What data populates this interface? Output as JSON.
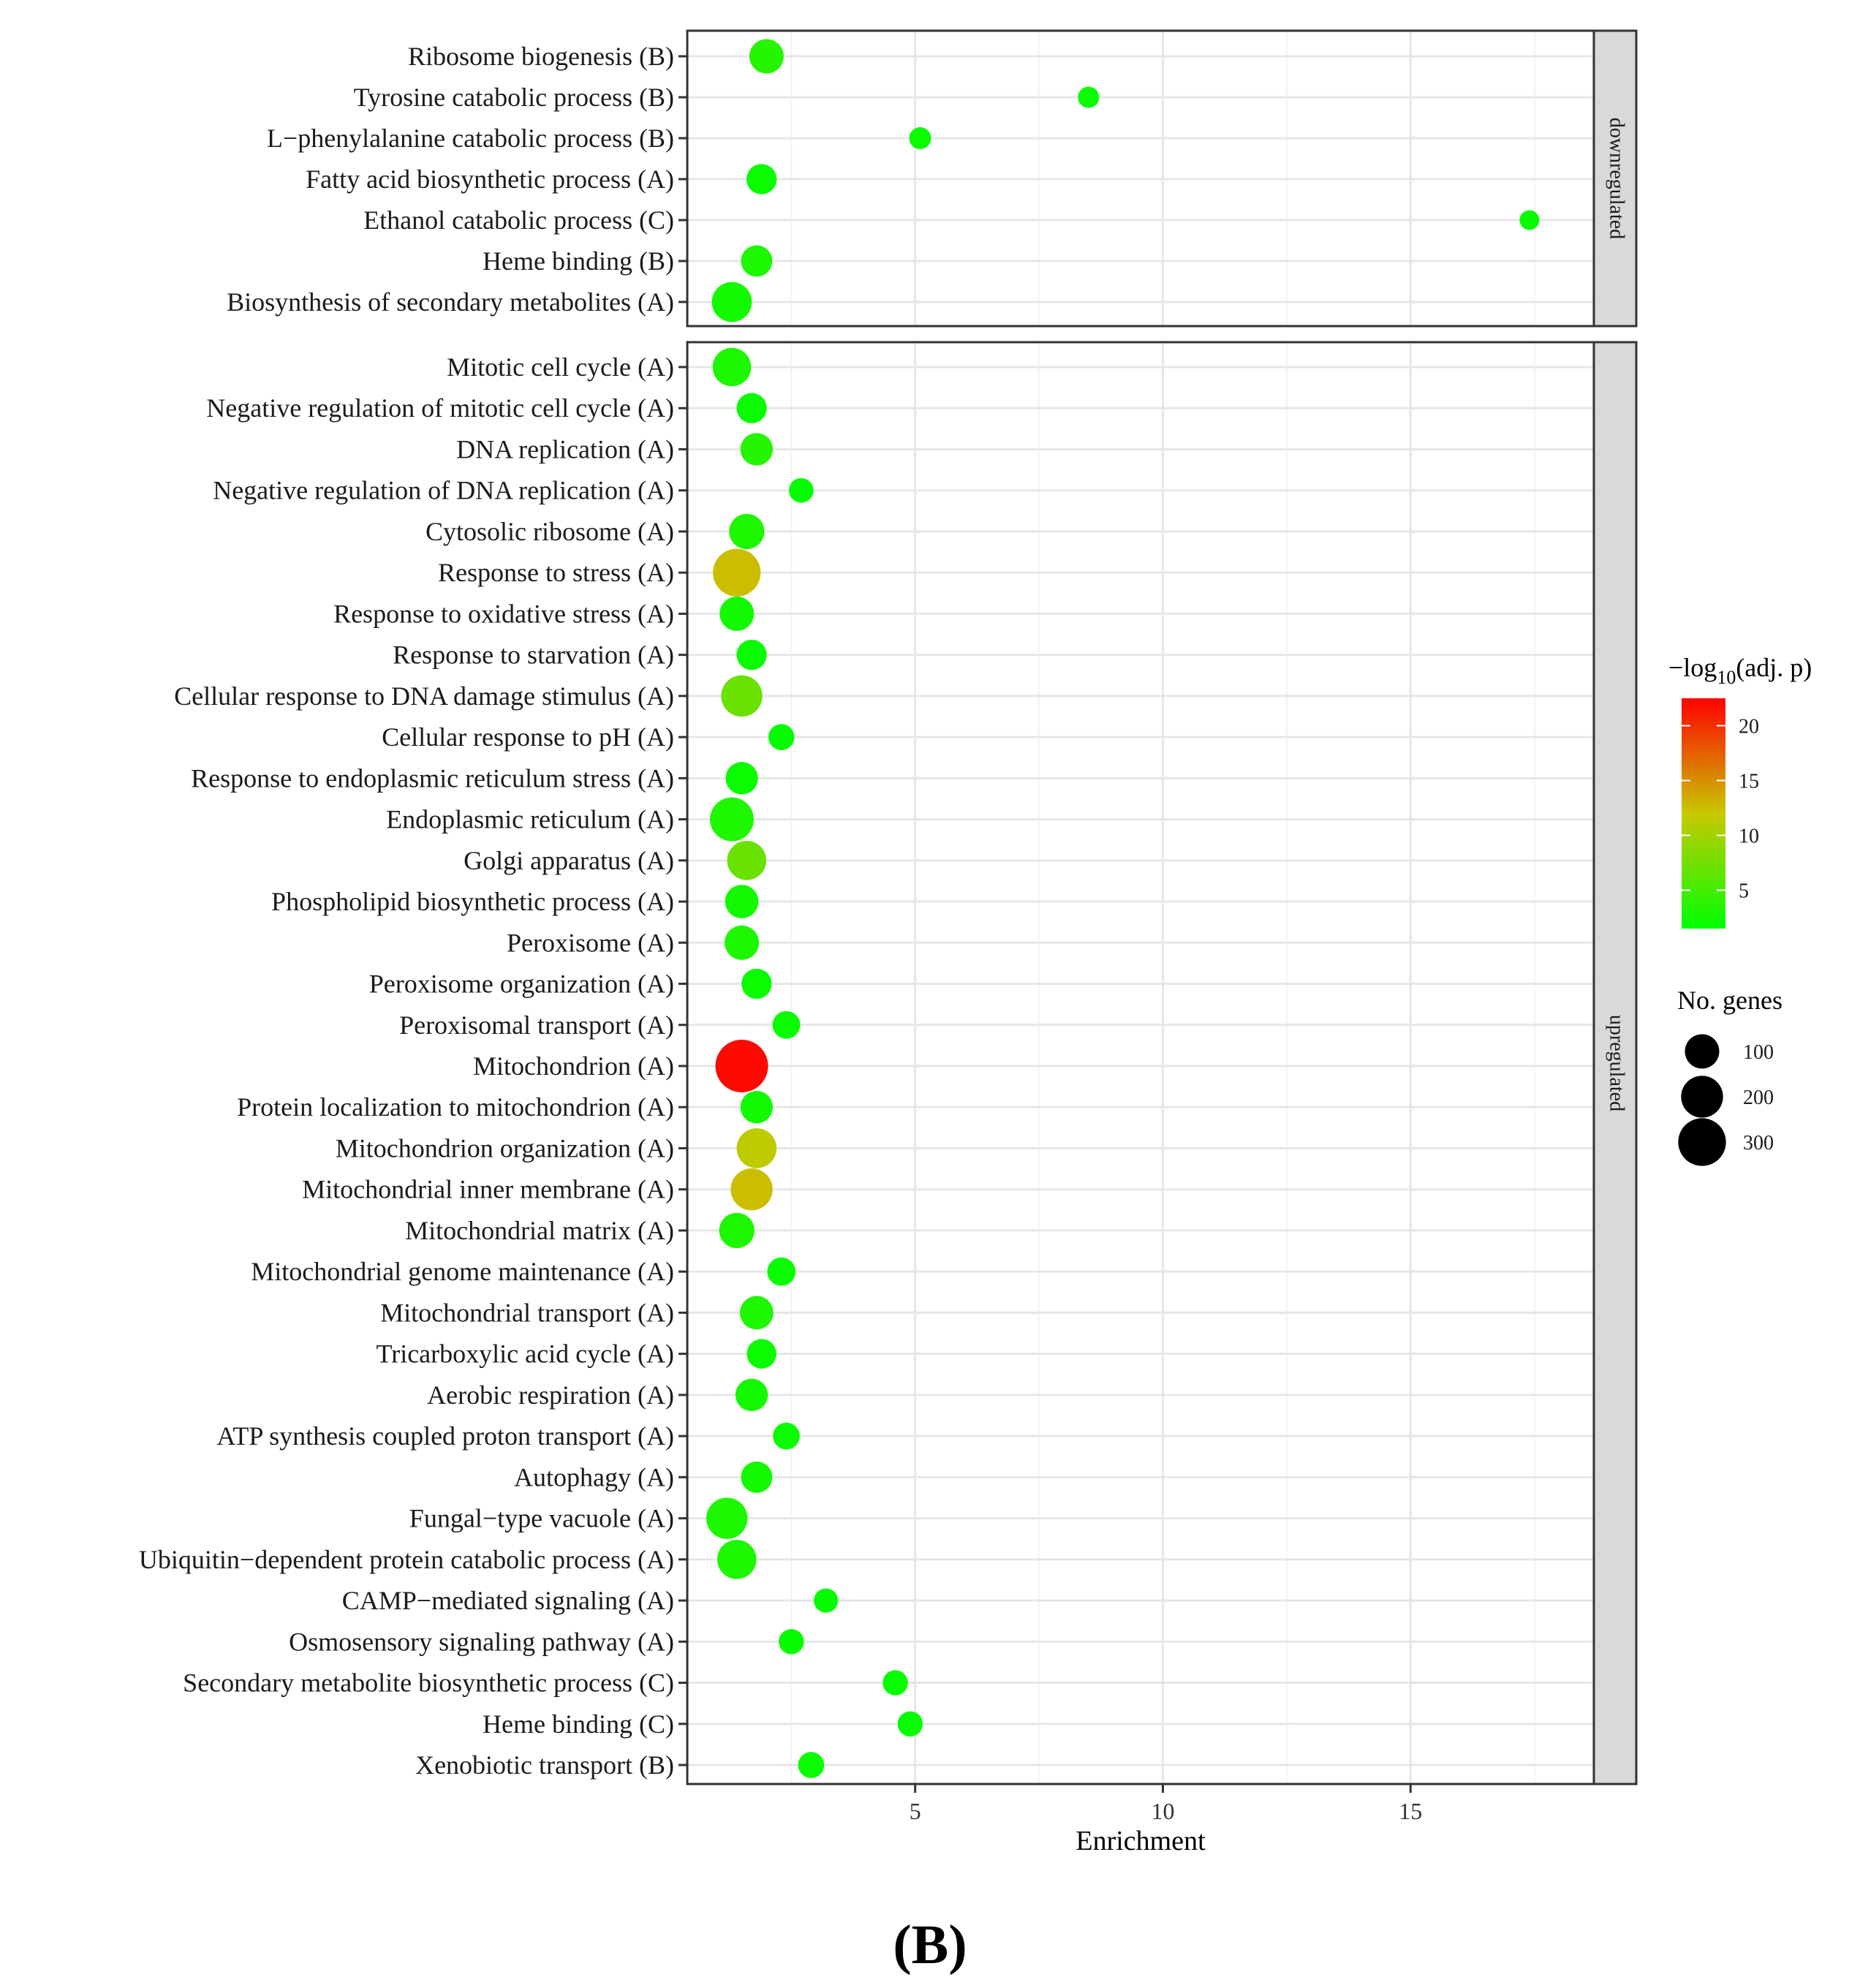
{
  "chart_data": {
    "type": "scatter",
    "xlabel": "Enrichment",
    "xlim": [
      0.4,
      18.7
    ],
    "xticks": [
      5,
      10,
      15
    ],
    "figure_label": "(B)",
    "panels": [
      {
        "strip_label": "downregulated",
        "terms": [
          {
            "label": "Ribosome biogenesis (B)",
            "enrichment": 2.0,
            "neg_log10_adj_p": 3.5,
            "genes": 100
          },
          {
            "label": "Tyrosine catabolic process (B)",
            "enrichment": 8.5,
            "neg_log10_adj_p": 2.0,
            "genes": 8
          },
          {
            "label": "L−phenylalanine catabolic process (B)",
            "enrichment": 5.1,
            "neg_log10_adj_p": 2.0,
            "genes": 10
          },
          {
            "label": "Fatty acid biosynthetic process (A)",
            "enrichment": 1.9,
            "neg_log10_adj_p": 2.0,
            "genes": 60
          },
          {
            "label": "Ethanol catabolic process (C)",
            "enrichment": 17.4,
            "neg_log10_adj_p": 1.8,
            "genes": 4
          },
          {
            "label": "Heme binding (B)",
            "enrichment": 1.8,
            "neg_log10_adj_p": 3.0,
            "genes": 70
          },
          {
            "label": "Biosynthesis of secondary metabolites (A)",
            "enrichment": 1.3,
            "neg_log10_adj_p": 2.5,
            "genes": 170
          }
        ]
      },
      {
        "strip_label": "upregulated",
        "terms": [
          {
            "label": "Mitotic cell cycle (A)",
            "enrichment": 1.3,
            "neg_log10_adj_p": 3.0,
            "genes": 150
          },
          {
            "label": "Negative regulation of mitotic cell cycle (A)",
            "enrichment": 1.7,
            "neg_log10_adj_p": 2.0,
            "genes": 60
          },
          {
            "label": "DNA replication (A)",
            "enrichment": 1.8,
            "neg_log10_adj_p": 3.5,
            "genes": 80
          },
          {
            "label": "Negative regulation of DNA replication (A)",
            "enrichment": 2.7,
            "neg_log10_adj_p": 1.8,
            "genes": 22
          },
          {
            "label": "Cytosolic ribosome (A)",
            "enrichment": 1.6,
            "neg_log10_adj_p": 3.0,
            "genes": 110
          },
          {
            "label": "Response to stress (A)",
            "enrichment": 1.4,
            "neg_log10_adj_p": 12.5,
            "genes": 300
          },
          {
            "label": "Response to oxidative stress (A)",
            "enrichment": 1.4,
            "neg_log10_adj_p": 2.5,
            "genes": 100
          },
          {
            "label": "Response to starvation (A)",
            "enrichment": 1.7,
            "neg_log10_adj_p": 2.0,
            "genes": 60
          },
          {
            "label": "Cellular response to DNA damage stimulus (A)",
            "enrichment": 1.5,
            "neg_log10_adj_p": 7.0,
            "genes": 190
          },
          {
            "label": "Cellular response to pH (A)",
            "enrichment": 2.3,
            "neg_log10_adj_p": 1.8,
            "genes": 30
          },
          {
            "label": "Response to endoplasmic reticulum stress (A)",
            "enrichment": 1.5,
            "neg_log10_adj_p": 2.0,
            "genes": 80
          },
          {
            "label": "Endoplasmic reticulum (A)",
            "enrichment": 1.3,
            "neg_log10_adj_p": 3.0,
            "genes": 230
          },
          {
            "label": "Golgi apparatus (A)",
            "enrichment": 1.6,
            "neg_log10_adj_p": 7.0,
            "genes": 160
          },
          {
            "label": "Phospholipid biosynthetic process (A)",
            "enrichment": 1.5,
            "neg_log10_adj_p": 2.5,
            "genes": 90
          },
          {
            "label": "Peroxisome (A)",
            "enrichment": 1.5,
            "neg_log10_adj_p": 3.0,
            "genes": 100
          },
          {
            "label": "Peroxisome organization (A)",
            "enrichment": 1.8,
            "neg_log10_adj_p": 2.0,
            "genes": 60
          },
          {
            "label": "Peroxisomal transport (A)",
            "enrichment": 2.4,
            "neg_log10_adj_p": 2.0,
            "genes": 40
          },
          {
            "label": "Mitochondrion (A)",
            "enrichment": 1.5,
            "neg_log10_adj_p": 22.0,
            "genes": 400
          },
          {
            "label": "Protein localization to mitochondrion (A)",
            "enrichment": 1.8,
            "neg_log10_adj_p": 2.5,
            "genes": 80
          },
          {
            "label": "Mitochondrion organization (A)",
            "enrichment": 1.8,
            "neg_log10_adj_p": 11.5,
            "genes": 170
          },
          {
            "label": "Mitochondrial inner membrane (A)",
            "enrichment": 1.7,
            "neg_log10_adj_p": 12.5,
            "genes": 200
          },
          {
            "label": "Mitochondrial matrix (A)",
            "enrichment": 1.4,
            "neg_log10_adj_p": 3.0,
            "genes": 110
          },
          {
            "label": "Mitochondrial genome maintenance (A)",
            "enrichment": 2.3,
            "neg_log10_adj_p": 2.0,
            "genes": 45
          },
          {
            "label": "Mitochondrial transport (A)",
            "enrichment": 1.8,
            "neg_log10_adj_p": 3.0,
            "genes": 90
          },
          {
            "label": "Tricarboxylic acid cycle (A)",
            "enrichment": 1.9,
            "neg_log10_adj_p": 2.0,
            "genes": 55
          },
          {
            "label": "Aerobic respiration (A)",
            "enrichment": 1.7,
            "neg_log10_adj_p": 2.5,
            "genes": 80
          },
          {
            "label": "ATP synthesis coupled proton transport (A)",
            "enrichment": 2.4,
            "neg_log10_adj_p": 2.0,
            "genes": 35
          },
          {
            "label": "Autophagy (A)",
            "enrichment": 1.8,
            "neg_log10_adj_p": 2.5,
            "genes": 70
          },
          {
            "label": "Fungal−type vacuole (A)",
            "enrichment": 1.2,
            "neg_log10_adj_p": 3.0,
            "genes": 190
          },
          {
            "label": "Ubiquitin−dependent protein catabolic process (A)",
            "enrichment": 1.4,
            "neg_log10_adj_p": 3.0,
            "genes": 160
          },
          {
            "label": "CAMP−mediated signaling (A)",
            "enrichment": 3.2,
            "neg_log10_adj_p": 1.8,
            "genes": 20
          },
          {
            "label": "Osmosensory signaling pathway (A)",
            "enrichment": 2.5,
            "neg_log10_adj_p": 1.8,
            "genes": 25
          },
          {
            "label": "Secondary metabolite biosynthetic process (C)",
            "enrichment": 4.6,
            "neg_log10_adj_p": 2.0,
            "genes": 25
          },
          {
            "label": "Heme binding (C)",
            "enrichment": 4.9,
            "neg_log10_adj_p": 2.0,
            "genes": 25
          },
          {
            "label": "Xenobiotic transport (B)",
            "enrichment": 2.9,
            "neg_log10_adj_p": 2.0,
            "genes": 30
          }
        ]
      }
    ],
    "color_legend": {
      "title_main": "−log",
      "title_sub": "10",
      "title_tail": "(adj. p)",
      "min": 1.5,
      "max": 22.5,
      "ticks": [
        5,
        10,
        15,
        20
      ],
      "low_color": "#00ff00",
      "high_color": "#ff0000"
    },
    "size_legend": {
      "title": "No. genes",
      "values": [
        100,
        200,
        300
      ]
    }
  }
}
